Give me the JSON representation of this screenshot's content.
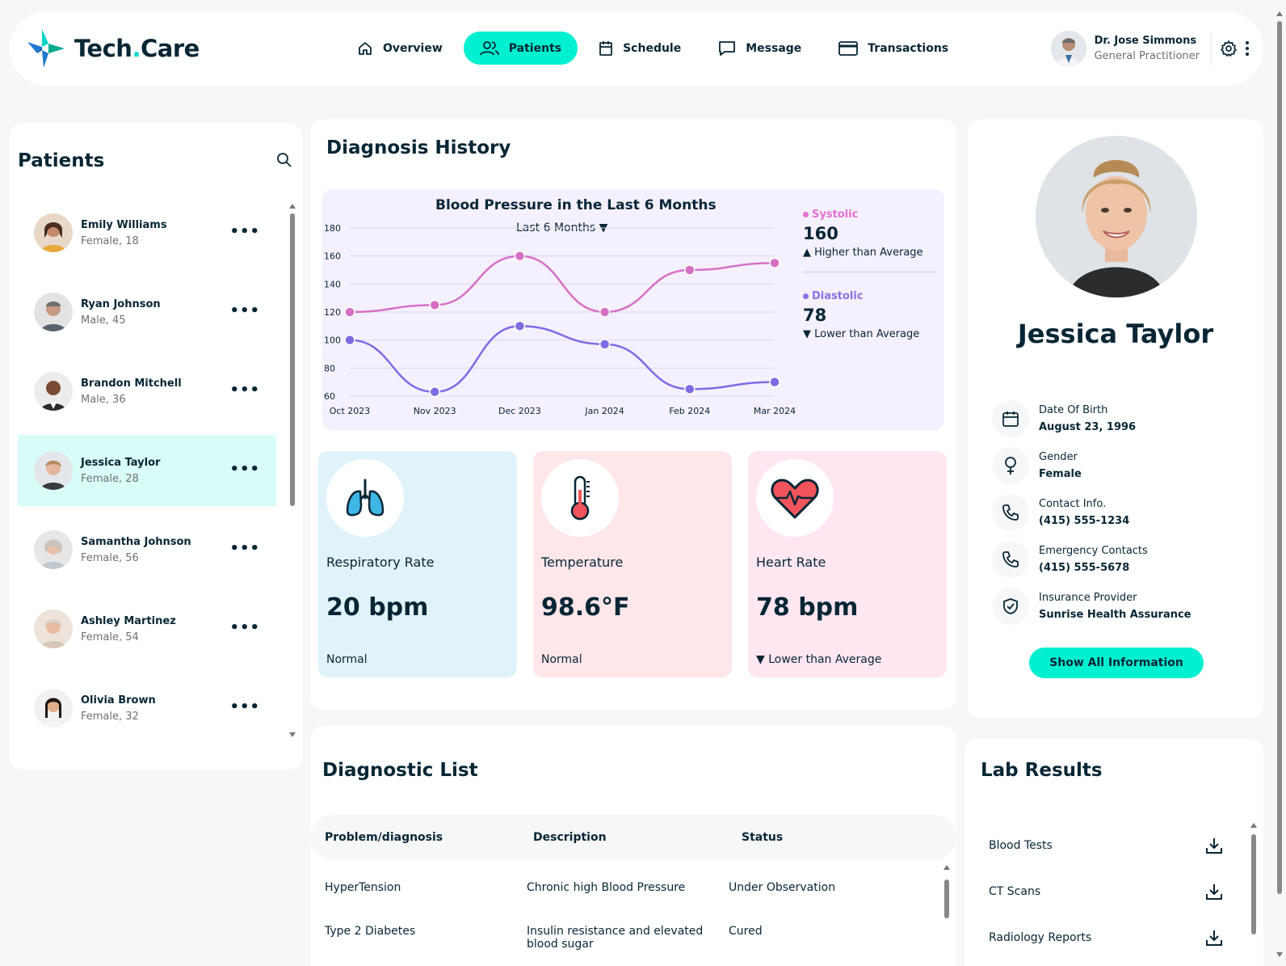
{
  "brand": {
    "name_left": "Tech",
    "name_dot": ".",
    "name_right": "Care",
    "accent": "#01f0d0"
  },
  "nav": [
    {
      "label": "Overview",
      "icon": "home-icon",
      "active": false
    },
    {
      "label": "Patients",
      "icon": "users-icon",
      "active": true
    },
    {
      "label": "Schedule",
      "icon": "calendar-icon",
      "active": false
    },
    {
      "label": "Message",
      "icon": "message-icon",
      "active": false
    },
    {
      "label": "Transactions",
      "icon": "credit-card-icon",
      "active": false
    }
  ],
  "doctor": {
    "name": "Dr. Jose Simmons",
    "role": "General Practitioner"
  },
  "patients": {
    "title": "Patients",
    "items": [
      {
        "name": "Emily Williams",
        "sub": "Female, 18",
        "active": false
      },
      {
        "name": "Ryan Johnson",
        "sub": "Male, 45",
        "active": false
      },
      {
        "name": "Brandon Mitchell",
        "sub": "Male, 36",
        "active": false
      },
      {
        "name": "Jessica Taylor",
        "sub": "Female, 28",
        "active": true
      },
      {
        "name": "Samantha Johnson",
        "sub": "Female, 56",
        "active": false
      },
      {
        "name": "Ashley Martinez",
        "sub": "Female, 54",
        "active": false
      },
      {
        "name": "Olivia Brown",
        "sub": "Female, 32",
        "active": false
      }
    ],
    "more": "•••"
  },
  "diagnosis": {
    "title": "Diagnosis History",
    "chart_title": "Blood Pressure in the Last 6 Months",
    "range": "Last 6 Months ▼",
    "systolic": {
      "name": "Systolic",
      "value": "160",
      "note": "▲ Higher than Average",
      "color": "#e66fd2"
    },
    "diastolic": {
      "name": "Diastolic",
      "value": "78",
      "note": "▼ Lower than Average",
      "color": "#8c6fe6"
    }
  },
  "chart_data": {
    "type": "line",
    "title": "Blood Pressure in the Last 6 Months",
    "categories": [
      "Oct 2023",
      "Nov 2023",
      "Dec 2023",
      "Jan 2024",
      "Feb 2024",
      "Mar 2024"
    ],
    "series": [
      {
        "name": "Systolic",
        "values": [
          120,
          125,
          160,
          120,
          150,
          155
        ],
        "color": "#d670c4"
      },
      {
        "name": "Diastolic",
        "values": [
          100,
          63,
          110,
          97,
          65,
          70
        ],
        "color": "#7e6ce4"
      }
    ],
    "ylim": [
      60,
      180
    ],
    "yticks": [
      60,
      80,
      100,
      120,
      140,
      160,
      180
    ],
    "grid": true
  },
  "vitals": [
    {
      "label": "Respiratory Rate",
      "value": "20 bpm",
      "status": "Normal",
      "icon": "lungs-icon",
      "bg": "#e0f3fa"
    },
    {
      "label": "Temperature",
      "value": "98.6°F",
      "status": "Normal",
      "icon": "thermometer-icon",
      "bg": "#ffe6e9"
    },
    {
      "label": "Heart Rate",
      "value": "78 bpm",
      "status": "▼ Lower than Average",
      "icon": "heart-icon",
      "bg": "#ffe6f1"
    }
  ],
  "profile": {
    "name": "Jessica Taylor",
    "info": [
      {
        "label": "Date Of Birth",
        "value": "August 23, 1996",
        "icon": "calendar-icon"
      },
      {
        "label": "Gender",
        "value": "Female",
        "icon": "female-icon"
      },
      {
        "label": "Contact Info.",
        "value": "(415) 555-1234",
        "icon": "phone-icon"
      },
      {
        "label": "Emergency Contacts",
        "value": "(415) 555-5678",
        "icon": "phone-icon"
      },
      {
        "label": "Insurance Provider",
        "value": "Sunrise Health Assurance",
        "icon": "shield-icon"
      }
    ],
    "button": "Show All Information"
  },
  "diagnostic_list": {
    "title": "Diagnostic List",
    "headers": [
      "Problem/diagnosis",
      "Description",
      "Status"
    ],
    "rows": [
      [
        "HyperTension",
        "Chronic high Blood Pressure",
        "Under Observation"
      ],
      [
        "Type 2 Diabetes",
        "Insulin resistance and elevated blood sugar",
        "Cured"
      ]
    ]
  },
  "lab_results": {
    "title": "Lab Results",
    "items": [
      "Blood Tests",
      "CT Scans",
      "Radiology Reports"
    ]
  }
}
